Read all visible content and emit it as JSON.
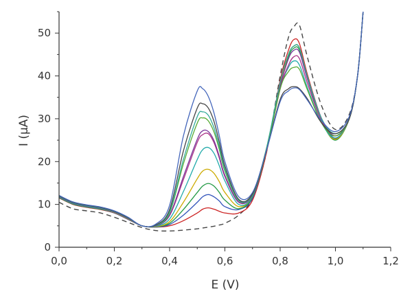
{
  "chart_data": {
    "type": "line",
    "title": "",
    "xlabel": "E (V)",
    "ylabel": "I (µA)",
    "xlim": [
      0.0,
      1.2
    ],
    "ylim": [
      0,
      55
    ],
    "x_ticks": [
      0.0,
      0.2,
      0.4,
      0.6,
      0.8,
      1.0,
      1.2
    ],
    "x_tick_labels": [
      "0,0",
      "0,2",
      "0,4",
      "0,6",
      "0,8",
      "1,0",
      "1,2"
    ],
    "y_ticks": [
      0,
      10,
      20,
      30,
      40,
      50
    ],
    "y_tick_labels": [
      "0",
      "10",
      "20",
      "30",
      "40",
      "50"
    ],
    "grid": false,
    "legend": "none",
    "x": [
      0.0,
      0.05,
      0.1,
      0.15,
      0.2,
      0.25,
      0.3,
      0.35,
      0.4,
      0.45,
      0.5,
      0.52,
      0.54,
      0.56,
      0.58,
      0.6,
      0.65,
      0.7,
      0.75,
      0.8,
      0.83,
      0.85,
      0.87,
      0.9,
      0.95,
      1.0,
      1.05,
      1.08,
      1.1
    ],
    "series": [
      {
        "color": "#444444",
        "dashed": true,
        "values": [
          10.5,
          9.0,
          8.5,
          8.0,
          7.0,
          5.8,
          4.6,
          3.9,
          3.8,
          4.0,
          4.3,
          4.5,
          4.7,
          4.9,
          5.2,
          5.6,
          7.5,
          11.5,
          22.0,
          40.0,
          49.0,
          51.5,
          51.8,
          44.0,
          33.0,
          27.5,
          31.0,
          40.0,
          55.0
        ]
      },
      {
        "color": "#cc2222",
        "dashed": false,
        "values": [
          11.5,
          10.0,
          9.3,
          8.8,
          8.0,
          6.5,
          5.0,
          4.7,
          5.0,
          6.2,
          8.0,
          8.9,
          9.2,
          8.9,
          8.4,
          8.0,
          8.0,
          11.0,
          22.0,
          39.0,
          46.0,
          48.5,
          47.5,
          40.0,
          30.0,
          25.3,
          30.0,
          40.0,
          55.0
        ]
      },
      {
        "color": "#3355bb",
        "dashed": false,
        "values": [
          11.6,
          10.1,
          9.4,
          8.9,
          8.0,
          6.5,
          5.0,
          4.7,
          5.3,
          7.5,
          10.5,
          11.8,
          12.3,
          11.8,
          10.8,
          9.5,
          8.8,
          11.5,
          22.5,
          38.5,
          45.0,
          47.0,
          46.5,
          39.5,
          30.0,
          25.5,
          30.0,
          40.0,
          55.0
        ]
      },
      {
        "color": "#229944",
        "dashed": false,
        "values": [
          11.6,
          10.1,
          9.4,
          8.9,
          8.1,
          6.6,
          5.0,
          4.8,
          5.6,
          8.8,
          12.8,
          14.3,
          14.9,
          14.3,
          12.8,
          11.0,
          9.0,
          11.8,
          22.5,
          38.0,
          44.5,
          46.5,
          46.0,
          39.0,
          29.5,
          25.0,
          30.0,
          40.0,
          55.0
        ]
      },
      {
        "color": "#ccaa00",
        "dashed": false,
        "values": [
          11.7,
          10.2,
          9.5,
          9.0,
          8.1,
          6.6,
          5.0,
          4.8,
          6.0,
          10.5,
          16.0,
          17.8,
          18.2,
          17.3,
          15.3,
          12.8,
          9.5,
          12.0,
          23.0,
          38.0,
          45.0,
          47.0,
          46.5,
          39.5,
          29.5,
          25.2,
          30.0,
          40.0,
          55.0
        ]
      },
      {
        "color": "#22aaaa",
        "dashed": false,
        "values": [
          11.7,
          10.2,
          9.5,
          9.0,
          8.2,
          6.7,
          5.0,
          4.9,
          6.6,
          13.0,
          20.5,
          22.8,
          23.3,
          22.0,
          19.0,
          15.5,
          10.0,
          12.0,
          22.5,
          37.0,
          42.0,
          43.5,
          42.5,
          37.0,
          29.0,
          25.5,
          30.0,
          40.0,
          55.0
        ]
      },
      {
        "color": "#aa3388",
        "dashed": false,
        "values": [
          11.8,
          10.3,
          9.6,
          9.1,
          8.2,
          6.7,
          5.0,
          5.0,
          7.4,
          15.8,
          24.5,
          26.3,
          26.5,
          24.5,
          20.8,
          16.5,
          10.5,
          12.2,
          22.5,
          37.0,
          42.5,
          44.5,
          44.0,
          38.0,
          29.5,
          26.0,
          30.0,
          40.0,
          55.0
        ]
      },
      {
        "color": "#773399",
        "dashed": false,
        "values": [
          11.8,
          10.3,
          9.6,
          9.1,
          8.2,
          6.7,
          5.0,
          5.0,
          7.5,
          16.5,
          25.2,
          27.2,
          27.0,
          25.0,
          21.2,
          16.8,
          10.6,
          12.3,
          22.8,
          37.5,
          44.0,
          46.0,
          45.5,
          39.0,
          30.0,
          26.0,
          30.0,
          40.0,
          55.0
        ]
      },
      {
        "color": "#55aa33",
        "dashed": false,
        "values": [
          11.9,
          10.4,
          9.7,
          9.2,
          8.3,
          6.8,
          5.0,
          5.1,
          8.0,
          19.5,
          29.0,
          30.2,
          29.5,
          27.0,
          22.8,
          17.8,
          10.9,
          12.3,
          22.5,
          37.0,
          41.0,
          42.0,
          41.5,
          36.5,
          29.0,
          26.0,
          30.0,
          40.0,
          55.0
        ]
      },
      {
        "color": "#33aa99",
        "dashed": false,
        "values": [
          11.9,
          10.4,
          9.7,
          9.2,
          8.3,
          6.8,
          5.0,
          5.1,
          8.3,
          20.5,
          30.5,
          31.6,
          30.8,
          28.0,
          23.5,
          18.3,
          11.0,
          12.4,
          23.0,
          38.5,
          45.0,
          47.0,
          46.5,
          39.5,
          30.0,
          26.5,
          30.0,
          40.0,
          55.0
        ]
      },
      {
        "color": "#444444",
        "dashed": false,
        "values": [
          12.0,
          10.5,
          9.8,
          9.3,
          8.4,
          6.9,
          5.0,
          5.2,
          8.8,
          22.5,
          32.5,
          33.5,
          32.5,
          29.5,
          24.5,
          19.0,
          11.2,
          12.5,
          22.5,
          34.5,
          37.0,
          37.5,
          37.0,
          34.5,
          29.0,
          26.5,
          30.0,
          40.0,
          55.0
        ]
      },
      {
        "color": "#4466bb",
        "dashed": false,
        "values": [
          12.1,
          10.6,
          9.9,
          9.4,
          8.5,
          7.0,
          5.0,
          5.4,
          9.8,
          26.0,
          36.5,
          37.0,
          35.2,
          31.5,
          26.0,
          20.0,
          11.8,
          12.8,
          22.5,
          34.0,
          36.5,
          37.2,
          36.8,
          34.2,
          29.5,
          27.0,
          30.5,
          40.0,
          55.0
        ]
      }
    ]
  }
}
